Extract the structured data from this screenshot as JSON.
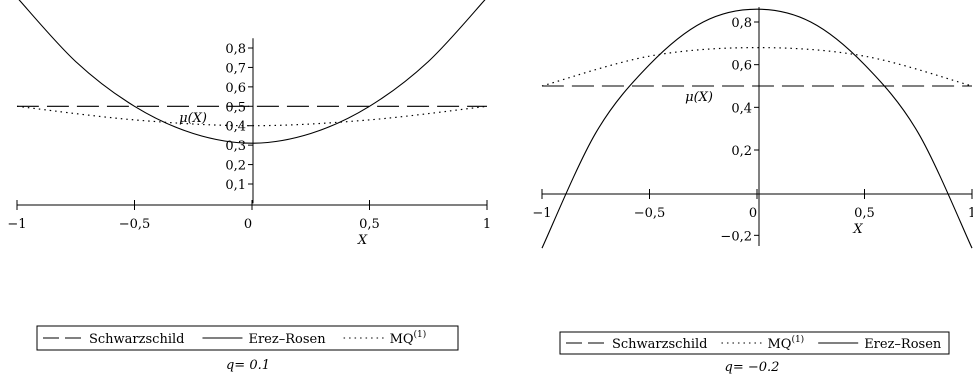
{
  "chart_data": [
    {
      "type": "line",
      "xlabel": "X",
      "ylabel": "μ(X)",
      "xlim": [
        -1,
        1
      ],
      "ylim": [
        0,
        0.85
      ],
      "x_ticks": [
        -1,
        -0.5,
        0,
        0.5,
        1
      ],
      "x_tick_labels": [
        "−1",
        "−0,5",
        "0",
        "0,5",
        "1"
      ],
      "y_ticks": [
        0.1,
        0.2,
        0.3,
        0.4,
        0.5,
        0.6,
        0.7,
        0.8
      ],
      "y_tick_labels": [
        "0,1",
        "0,2",
        "0,3",
        "0,4",
        "0,5",
        "0,6",
        "0,7",
        "0,8"
      ],
      "series": [
        {
          "name": "Schwarzschild",
          "style": "dashed",
          "x": [
            -1,
            0,
            1
          ],
          "y": [
            0.5,
            0.5,
            0.5
          ]
        },
        {
          "name": "Erez–Rosen",
          "style": "solid",
          "x": [
            -1,
            -0.75,
            -0.5,
            -0.25,
            0,
            0.25,
            0.5,
            0.75,
            1
          ],
          "y": [
            1.06,
            0.73,
            0.5,
            0.36,
            0.31,
            0.36,
            0.5,
            0.73,
            1.06
          ]
        },
        {
          "name": "MQ(1)",
          "style": "dotted",
          "x": [
            -1,
            -0.5,
            0,
            0.5,
            1
          ],
          "y": [
            0.5,
            0.43,
            0.4,
            0.43,
            0.5
          ]
        }
      ],
      "legend": {
        "placement": "bottom",
        "order": [
          "Schwarzschild",
          "Erez–Rosen",
          "MQ(1)"
        ]
      },
      "caption": "q= 0.1"
    },
    {
      "type": "line",
      "xlabel": "X",
      "ylabel": "μ(X)",
      "xlim": [
        -1,
        1
      ],
      "ylim": [
        -0.25,
        0.87
      ],
      "x_ticks": [
        -1,
        -0.5,
        0,
        0.5,
        1
      ],
      "x_tick_labels": [
        "−1",
        "−0,5",
        "0",
        "0,5",
        "1"
      ],
      "y_ticks": [
        -0.2,
        0.2,
        0.4,
        0.6,
        0.8
      ],
      "y_tick_labels": [
        "−0,2",
        "0,2",
        "0,4",
        "0,6",
        "0,8"
      ],
      "series": [
        {
          "name": "Schwarzschild",
          "style": "dashed",
          "x": [
            -1,
            0,
            1
          ],
          "y": [
            0.5,
            0.5,
            0.5
          ]
        },
        {
          "name": "MQ(1)",
          "style": "dotted",
          "x": [
            -1,
            -0.5,
            0,
            0.5,
            1
          ],
          "y": [
            0.5,
            0.64,
            0.68,
            0.64,
            0.5
          ]
        },
        {
          "name": "Erez–Rosen",
          "style": "solid",
          "x": [
            -1,
            -0.75,
            -0.5,
            -0.25,
            0,
            0.25,
            0.5,
            0.75,
            1
          ],
          "y": [
            -0.26,
            0.28,
            0.6,
            0.8,
            0.86,
            0.8,
            0.6,
            0.28,
            -0.26
          ]
        }
      ],
      "legend": {
        "placement": "bottom",
        "order": [
          "Schwarzschild",
          "MQ(1)",
          "Erez–Rosen"
        ]
      },
      "caption": "q= −0.2"
    }
  ]
}
